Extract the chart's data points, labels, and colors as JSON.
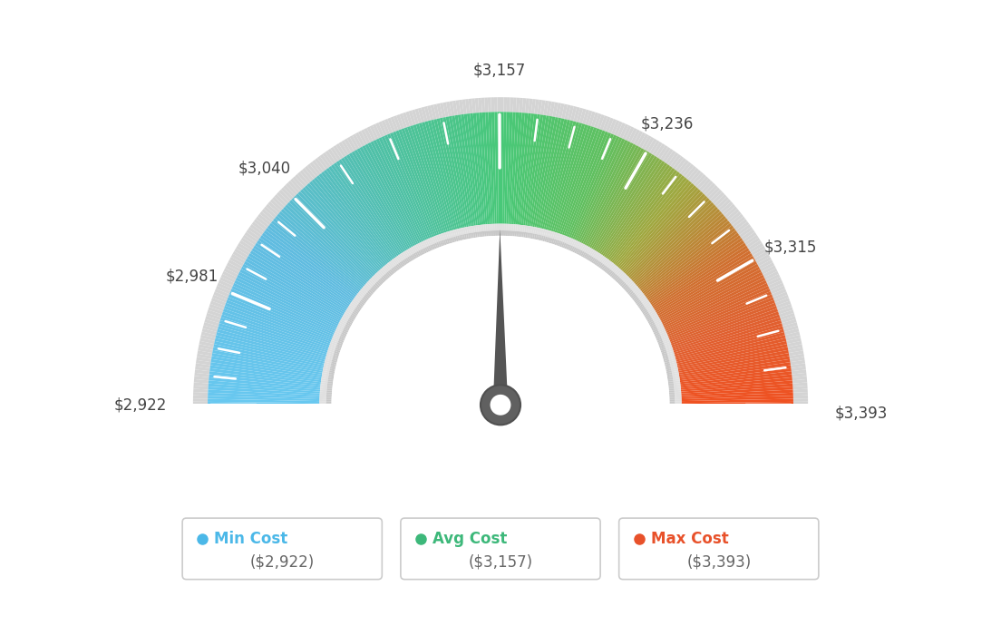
{
  "min_val": 2922,
  "max_val": 3393,
  "avg_val": 3157,
  "tick_labels": [
    "$2,922",
    "$2,981",
    "$3,040",
    "$3,157",
    "$3,236",
    "$3,315",
    "$3,393"
  ],
  "tick_values": [
    2922,
    2981,
    3040,
    3157,
    3236,
    3315,
    3393
  ],
  "legend": [
    {
      "label": "Min Cost",
      "sub": "($2,922)",
      "color": "#4bb8e8"
    },
    {
      "label": "Avg Cost",
      "sub": "($3,157)",
      "color": "#3db87a"
    },
    {
      "label": "Max Cost",
      "sub": "($3,393)",
      "color": "#e8512a"
    }
  ],
  "background_color": "#ffffff",
  "color_stops": [
    [
      0.0,
      "#68c8f0"
    ],
    [
      0.2,
      "#60bce0"
    ],
    [
      0.35,
      "#50c0a8"
    ],
    [
      0.5,
      "#48c878"
    ],
    [
      0.62,
      "#60c060"
    ],
    [
      0.72,
      "#a0a840"
    ],
    [
      0.82,
      "#d07030"
    ],
    [
      0.9,
      "#e06030"
    ],
    [
      1.0,
      "#f05020"
    ]
  ],
  "needle_color": "#555555",
  "outer_gray": "#d0d0d0",
  "inner_gray_light": "#e8e8e8",
  "inner_gray_dark": "#b8b8b8"
}
